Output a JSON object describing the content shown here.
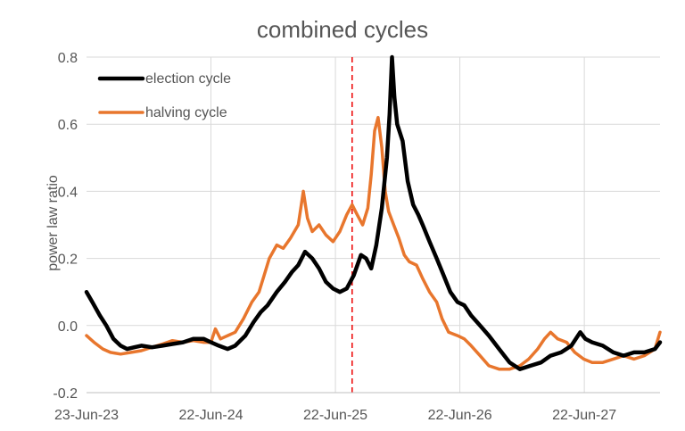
{
  "chart_data": {
    "type": "line",
    "title": "combined cycles",
    "xlabel": "",
    "ylabel": "power law ratio",
    "x_ticks": [
      "23-Jun-23",
      "22-Jun-24",
      "22-Jun-25",
      "22-Jun-26",
      "22-Jun-27"
    ],
    "x_range": [
      "2023-06-23",
      "2028-01-30"
    ],
    "ylim": [
      -0.2,
      0.8
    ],
    "y_ticks": [
      "-0.2",
      "0.0",
      "0.2",
      "0.4",
      "0.6",
      "0.8"
    ],
    "grid": true,
    "legend_position": "top-left",
    "vertical_marker": {
      "date": "2025-08-10",
      "style": "dashed",
      "color": "#ee1111"
    },
    "series": [
      {
        "name": "election cycle",
        "color": "#000000",
        "points": [
          [
            "2023-06-23",
            0.1
          ],
          [
            "2023-07-10",
            0.07
          ],
          [
            "2023-08-01",
            0.03
          ],
          [
            "2023-08-20",
            0.0
          ],
          [
            "2023-09-10",
            -0.04
          ],
          [
            "2023-10-01",
            -0.06
          ],
          [
            "2023-10-20",
            -0.07
          ],
          [
            "2023-11-10",
            -0.065
          ],
          [
            "2023-12-01",
            -0.06
          ],
          [
            "2024-01-01",
            -0.065
          ],
          [
            "2024-02-01",
            -0.06
          ],
          [
            "2024-03-01",
            -0.055
          ],
          [
            "2024-04-01",
            -0.05
          ],
          [
            "2024-05-01",
            -0.04
          ],
          [
            "2024-06-01",
            -0.04
          ],
          [
            "2024-06-22",
            -0.05
          ],
          [
            "2024-07-15",
            -0.06
          ],
          [
            "2024-08-10",
            -0.07
          ],
          [
            "2024-09-01",
            -0.06
          ],
          [
            "2024-10-01",
            -0.03
          ],
          [
            "2024-10-25",
            0.01
          ],
          [
            "2024-11-15",
            0.04
          ],
          [
            "2024-12-05",
            0.06
          ],
          [
            "2025-01-01",
            0.1
          ],
          [
            "2025-01-25",
            0.13
          ],
          [
            "2025-02-15",
            0.16
          ],
          [
            "2025-03-05",
            0.18
          ],
          [
            "2025-03-25",
            0.22
          ],
          [
            "2025-04-15",
            0.2
          ],
          [
            "2025-05-05",
            0.17
          ],
          [
            "2025-05-25",
            0.13
          ],
          [
            "2025-06-15",
            0.11
          ],
          [
            "2025-07-05",
            0.1
          ],
          [
            "2025-07-25",
            0.11
          ],
          [
            "2025-08-15",
            0.15
          ],
          [
            "2025-09-05",
            0.21
          ],
          [
            "2025-09-20",
            0.2
          ],
          [
            "2025-10-05",
            0.17
          ],
          [
            "2025-10-20",
            0.24
          ],
          [
            "2025-11-05",
            0.35
          ],
          [
            "2025-11-20",
            0.5
          ],
          [
            "2025-11-28",
            0.63
          ],
          [
            "2025-12-05",
            0.8
          ],
          [
            "2025-12-12",
            0.68
          ],
          [
            "2025-12-20",
            0.6
          ],
          [
            "2026-01-05",
            0.55
          ],
          [
            "2026-01-20",
            0.43
          ],
          [
            "2026-02-05",
            0.36
          ],
          [
            "2026-02-20",
            0.33
          ],
          [
            "2026-03-05",
            0.3
          ],
          [
            "2026-03-25",
            0.25
          ],
          [
            "2026-04-15",
            0.2
          ],
          [
            "2026-05-05",
            0.15
          ],
          [
            "2026-05-25",
            0.1
          ],
          [
            "2026-06-15",
            0.07
          ],
          [
            "2026-07-05",
            0.06
          ],
          [
            "2026-07-25",
            0.03
          ],
          [
            "2026-08-20",
            0.0
          ],
          [
            "2026-09-15",
            -0.03
          ],
          [
            "2026-10-15",
            -0.07
          ],
          [
            "2026-11-15",
            -0.11
          ],
          [
            "2026-12-15",
            -0.13
          ],
          [
            "2027-01-15",
            -0.12
          ],
          [
            "2027-02-15",
            -0.11
          ],
          [
            "2027-03-15",
            -0.09
          ],
          [
            "2027-04-15",
            -0.08
          ],
          [
            "2027-05-15",
            -0.06
          ],
          [
            "2027-06-10",
            -0.02
          ],
          [
            "2027-06-25",
            -0.04
          ],
          [
            "2027-07-15",
            -0.05
          ],
          [
            "2027-08-15",
            -0.06
          ],
          [
            "2027-09-15",
            -0.08
          ],
          [
            "2027-10-15",
            -0.09
          ],
          [
            "2027-11-15",
            -0.08
          ],
          [
            "2027-12-15",
            -0.08
          ],
          [
            "2028-01-15",
            -0.07
          ],
          [
            "2028-01-30",
            -0.05
          ]
        ]
      },
      {
        "name": "halving cycle",
        "color": "#e8762d",
        "points": [
          [
            "2023-06-23",
            -0.03
          ],
          [
            "2023-07-15",
            -0.05
          ],
          [
            "2023-08-10",
            -0.07
          ],
          [
            "2023-09-01",
            -0.08
          ],
          [
            "2023-10-01",
            -0.085
          ],
          [
            "2023-11-01",
            -0.08
          ],
          [
            "2023-12-01",
            -0.075
          ],
          [
            "2024-01-01",
            -0.065
          ],
          [
            "2024-02-01",
            -0.055
          ],
          [
            "2024-03-01",
            -0.045
          ],
          [
            "2024-04-01",
            -0.05
          ],
          [
            "2024-05-01",
            -0.045
          ],
          [
            "2024-06-01",
            -0.05
          ],
          [
            "2024-06-22",
            -0.05
          ],
          [
            "2024-07-05",
            -0.01
          ],
          [
            "2024-07-20",
            -0.04
          ],
          [
            "2024-08-10",
            -0.03
          ],
          [
            "2024-09-01",
            -0.02
          ],
          [
            "2024-09-25",
            0.02
          ],
          [
            "2024-10-20",
            0.07
          ],
          [
            "2024-11-10",
            0.1
          ],
          [
            "2024-11-25",
            0.15
          ],
          [
            "2024-12-10",
            0.2
          ],
          [
            "2025-01-01",
            0.24
          ],
          [
            "2025-01-20",
            0.23
          ],
          [
            "2025-02-10",
            0.26
          ],
          [
            "2025-03-05",
            0.3
          ],
          [
            "2025-03-20",
            0.4
          ],
          [
            "2025-04-01",
            0.32
          ],
          [
            "2025-04-15",
            0.28
          ],
          [
            "2025-05-05",
            0.3
          ],
          [
            "2025-05-25",
            0.27
          ],
          [
            "2025-06-15",
            0.25
          ],
          [
            "2025-07-05",
            0.28
          ],
          [
            "2025-07-25",
            0.33
          ],
          [
            "2025-08-10",
            0.36
          ],
          [
            "2025-08-25",
            0.33
          ],
          [
            "2025-09-10",
            0.3
          ],
          [
            "2025-09-25",
            0.35
          ],
          [
            "2025-10-05",
            0.45
          ],
          [
            "2025-10-15",
            0.58
          ],
          [
            "2025-10-25",
            0.62
          ],
          [
            "2025-11-05",
            0.53
          ],
          [
            "2025-11-15",
            0.4
          ],
          [
            "2025-11-25",
            0.34
          ],
          [
            "2025-12-10",
            0.3
          ],
          [
            "2025-12-25",
            0.26
          ],
          [
            "2026-01-10",
            0.21
          ],
          [
            "2026-01-25",
            0.19
          ],
          [
            "2026-02-15",
            0.18
          ],
          [
            "2026-03-05",
            0.14
          ],
          [
            "2026-03-25",
            0.1
          ],
          [
            "2026-04-15",
            0.07
          ],
          [
            "2026-05-01",
            0.02
          ],
          [
            "2026-05-20",
            -0.02
          ],
          [
            "2026-06-15",
            -0.03
          ],
          [
            "2026-07-05",
            -0.04
          ],
          [
            "2026-07-25",
            -0.06
          ],
          [
            "2026-08-20",
            -0.09
          ],
          [
            "2026-09-15",
            -0.12
          ],
          [
            "2026-10-15",
            -0.13
          ],
          [
            "2026-11-15",
            -0.13
          ],
          [
            "2026-12-15",
            -0.12
          ],
          [
            "2027-01-10",
            -0.1
          ],
          [
            "2027-02-05",
            -0.07
          ],
          [
            "2027-02-25",
            -0.04
          ],
          [
            "2027-03-15",
            -0.02
          ],
          [
            "2027-04-05",
            -0.04
          ],
          [
            "2027-05-01",
            -0.05
          ],
          [
            "2027-05-25",
            -0.08
          ],
          [
            "2027-06-20",
            -0.1
          ],
          [
            "2027-07-15",
            -0.11
          ],
          [
            "2027-08-15",
            -0.11
          ],
          [
            "2027-09-15",
            -0.1
          ],
          [
            "2027-10-15",
            -0.09
          ],
          [
            "2027-11-15",
            -0.1
          ],
          [
            "2027-12-15",
            -0.09
          ],
          [
            "2028-01-15",
            -0.07
          ],
          [
            "2028-01-30",
            -0.02
          ]
        ]
      }
    ]
  }
}
